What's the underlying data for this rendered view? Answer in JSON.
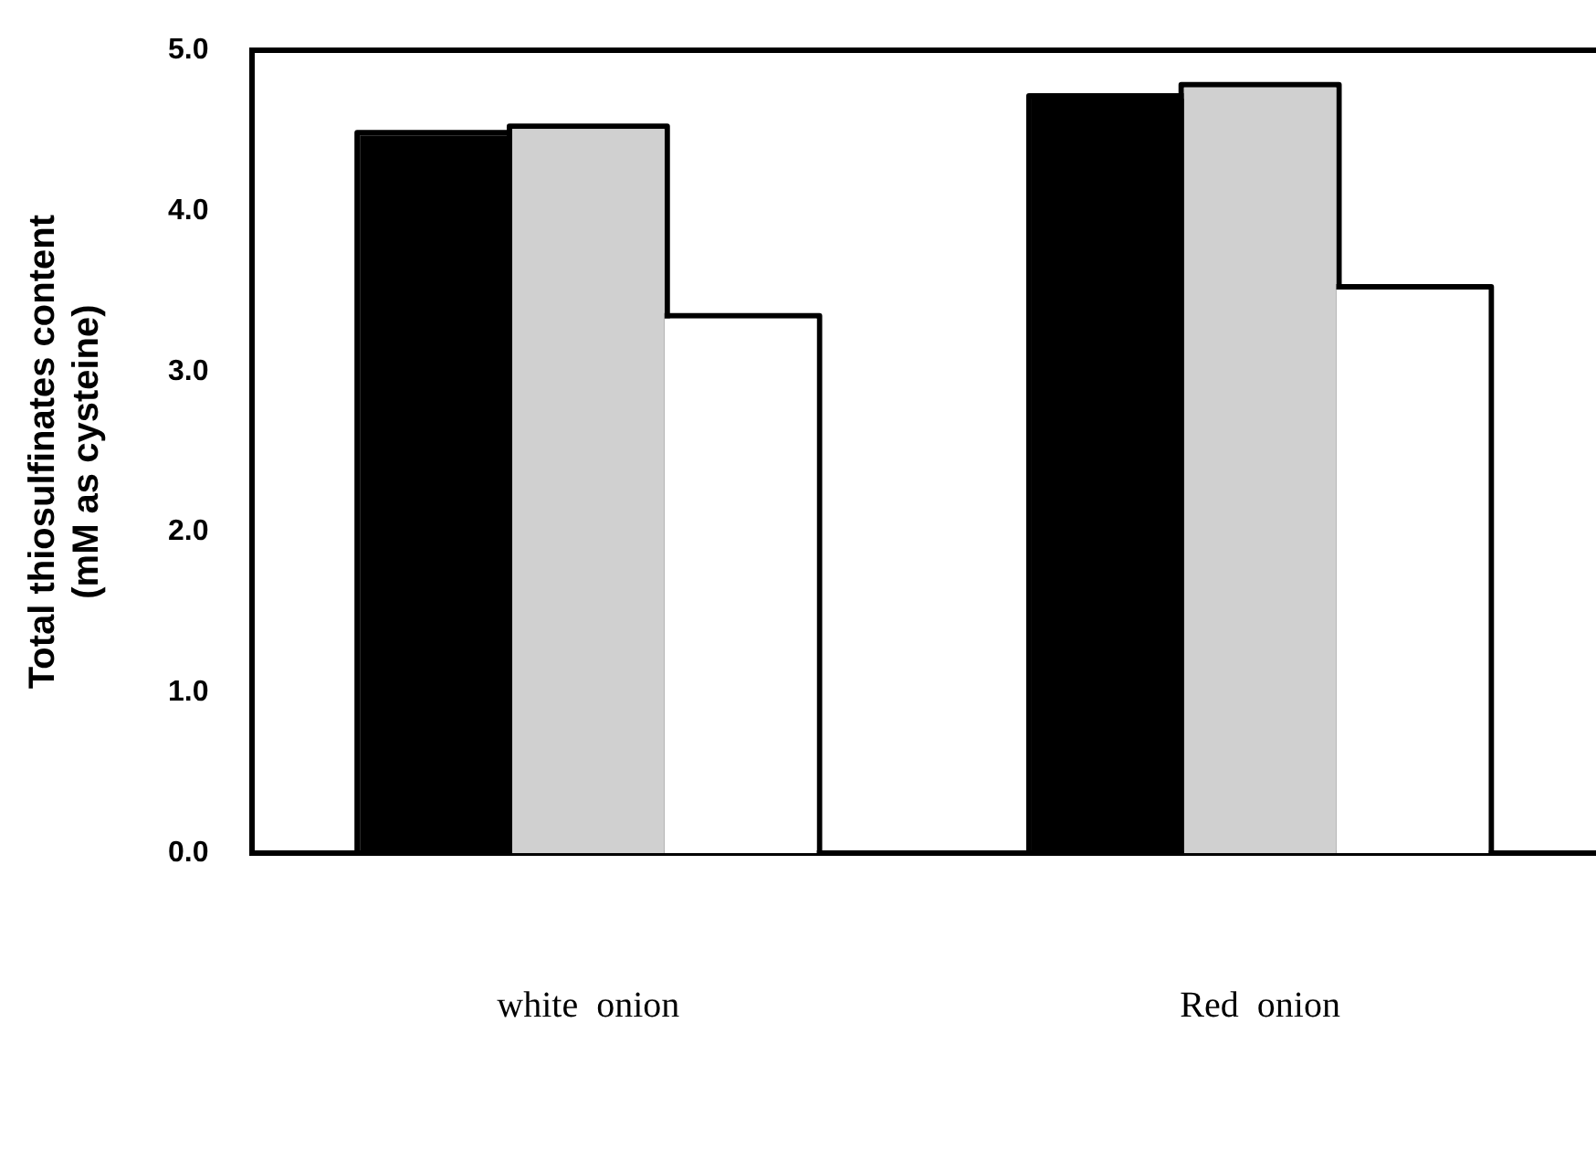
{
  "chart_data": {
    "type": "bar",
    "ylabel": "Total thiosulfinates content\n(mM as cysteine)",
    "categories": [
      "white  onion",
      "Red  onion"
    ],
    "series": [
      {
        "color": "#000000",
        "values": [
          4.47,
          4.7
        ]
      },
      {
        "color": "#d0d0d0",
        "values": [
          4.51,
          4.77
        ]
      },
      {
        "color": "#ffffff",
        "values": [
          3.33,
          3.51
        ]
      }
    ],
    "ylim": [
      0,
      5
    ],
    "yticks": [
      {
        "value": 0,
        "label": "0.0"
      },
      {
        "value": 1,
        "label": "1.0"
      },
      {
        "value": 2,
        "label": "2.0"
      },
      {
        "value": 3,
        "label": "3.0"
      },
      {
        "value": 4,
        "label": "4.0"
      },
      {
        "value": 5,
        "label": "5.0"
      }
    ],
    "grid": false,
    "legend": false
  }
}
